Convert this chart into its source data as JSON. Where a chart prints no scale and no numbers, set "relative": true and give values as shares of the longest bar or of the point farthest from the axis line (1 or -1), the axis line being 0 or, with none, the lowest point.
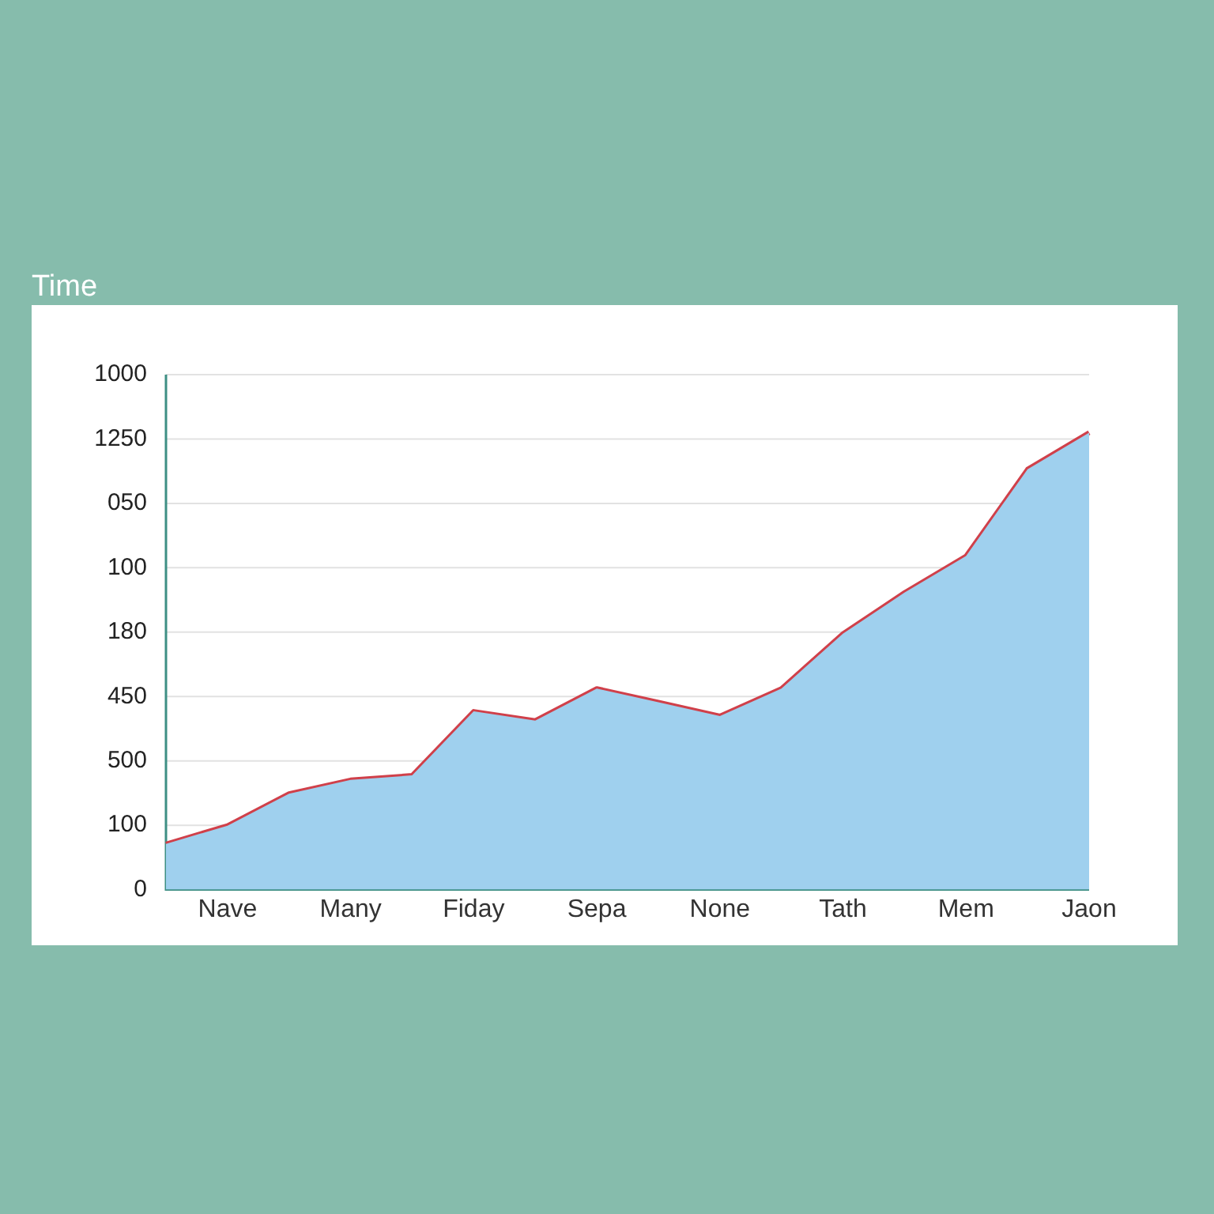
{
  "chart_data": {
    "type": "area",
    "title": "Time",
    "relative": true,
    "categories": [
      null,
      "Nave",
      null,
      "Many",
      null,
      "Fiday",
      null,
      "Sepa",
      null,
      "None",
      null,
      "Tath",
      null,
      "Mem",
      null,
      "Jaon"
    ],
    "series": [
      {
        "color": "#9fd0ee",
        "values": [
          0.1,
          0.14,
          0.21,
          0.24,
          0.25,
          0.39,
          0.37,
          0.44,
          0.41,
          0.38,
          0.44,
          0.56,
          0.65,
          0.73,
          0.92,
          1
        ]
      },
      {
        "type": "line",
        "color": "#d0404a",
        "values": [
          0.1,
          0.14,
          0.21,
          0.24,
          0.25,
          0.39,
          0.37,
          0.44,
          0.41,
          0.38,
          0.44,
          0.56,
          0.65,
          0.73,
          0.92,
          1
        ]
      }
    ],
    "annotations": [
      "1000",
      "1250",
      "050",
      "100",
      "180",
      "450",
      "500",
      "100",
      "0"
    ],
    "grid": "y",
    "legend": false,
    "marker": "none",
    "line_style": "solid"
  }
}
